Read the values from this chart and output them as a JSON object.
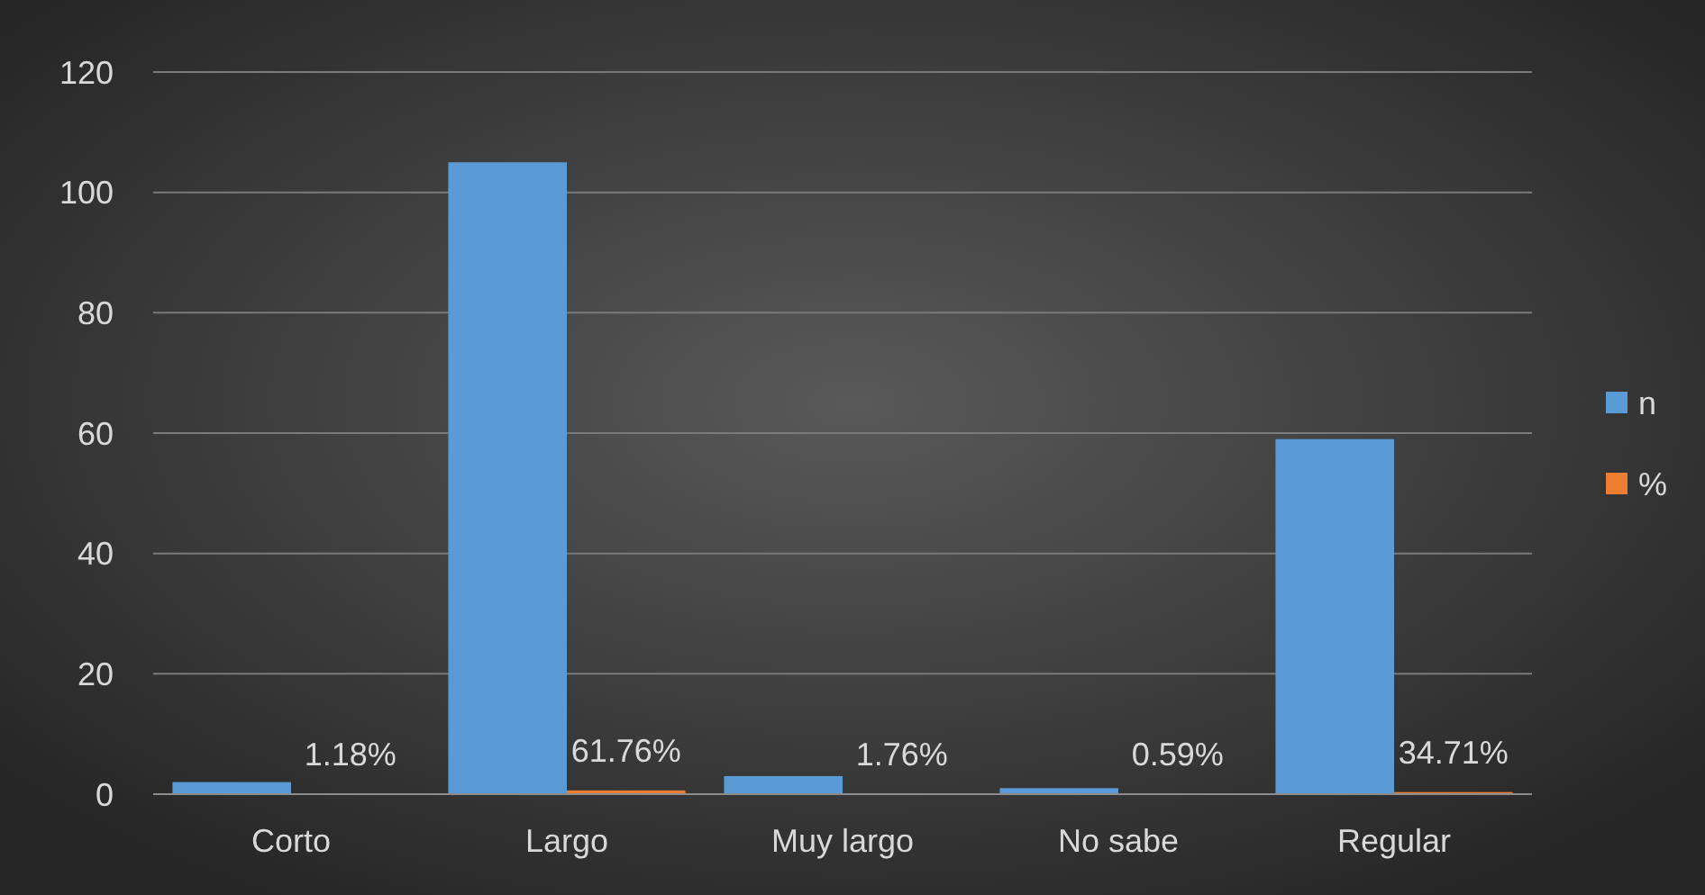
{
  "chart_data": {
    "type": "bar",
    "categories": [
      "Corto",
      "Largo",
      "Muy largo",
      "No sabe",
      "Regular"
    ],
    "series": [
      {
        "name": "n",
        "color": "#5b9bd5",
        "values": [
          2,
          105,
          3,
          1,
          59
        ]
      },
      {
        "name": "%",
        "color": "#ed7d31",
        "values": [
          0.0118,
          0.6176,
          0.0176,
          0.0059,
          0.3471
        ],
        "value_labels": [
          "1.18%",
          "61.76%",
          "1.76%",
          "0.59%",
          "34.71%"
        ]
      }
    ],
    "ylim": [
      0,
      120
    ],
    "yticks": [
      0,
      20,
      40,
      60,
      80,
      100,
      120
    ],
    "grid": "y",
    "legend": "right"
  }
}
